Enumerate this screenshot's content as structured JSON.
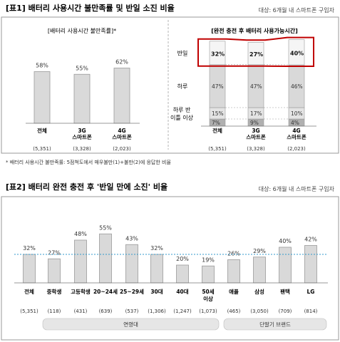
{
  "figure1": {
    "title": "[표1] 배터리 사용시간 불만족률 및 반일 소진 비율",
    "subtitle": "대상: 6개월 내 스마트폰 구입자",
    "footnote": "* 배터리 사용시간 불만족률: 5점척도에서 매우불만(1)+불만(2)에 응답한 비율",
    "left_panel": {
      "header": "[배터리 사용시간 불만족률]*",
      "chart_data": {
        "type": "bar",
        "categories": [
          "전체",
          "3G\n스마트폰",
          "4G\n스마트폰"
        ],
        "sample_sizes": [
          "(5,351)",
          "(3,328)",
          "(2,023)"
        ],
        "values": [
          58,
          55,
          62
        ],
        "value_labels": [
          "58%",
          "55%",
          "62%"
        ],
        "ylim": [
          0,
          100
        ]
      }
    },
    "right_panel": {
      "header": "[완전 충전 후 배터리 사용가능시간]",
      "chart_data": {
        "type": "bar",
        "stacked": true,
        "categories": [
          "전체",
          "3G\n스마트폰",
          "4G\n스마트폰"
        ],
        "sample_sizes": [
          "(5,351)",
          "(3,328)",
          "(2,023)"
        ],
        "series": [
          {
            "name": "하루 반\n이틀 이상",
            "values": [
              7,
              9,
              4
            ]
          },
          {
            "name": "하루 반",
            "values": [
              15,
              17,
              10
            ]
          },
          {
            "name": "하루",
            "values": [
              47,
              47,
              46
            ]
          },
          {
            "name": "반일",
            "values": [
              32,
              27,
              40
            ]
          }
        ],
        "value_labels": {
          "반일": [
            "32%",
            "27%",
            "40%"
          ],
          "하루": [
            "47%",
            "47%",
            "46%"
          ],
          "하루 반": [
            "15%",
            "17%",
            "10%"
          ],
          "이틀 이상": [
            "7%",
            "9%",
            "4%"
          ]
        },
        "row_labels": [
          "반일",
          "하루",
          "하루 반",
          "이틀 이상"
        ],
        "highlight": "반일",
        "ylim": [
          0,
          100
        ]
      }
    }
  },
  "figure2": {
    "title": "[표2] 배터리 완전 충전 후 '반일 만에 소진' 비율",
    "subtitle": "대상: 6개월 내 스마트폰 구입자",
    "chart_data": {
      "type": "bar",
      "categories": [
        "전체",
        "중학생",
        "고등학생",
        "20~24세",
        "25~29세",
        "30대",
        "40대",
        "50세\n이상",
        "애플",
        "삼성",
        "팬택",
        "LG"
      ],
      "sample_sizes": [
        "(5,351)",
        "(118)",
        "(431)",
        "(639)",
        "(537)",
        "(1,306)",
        "(1,247)",
        "(1,073)",
        "(465)",
        "(3,050)",
        "(709)",
        "(814)"
      ],
      "values": [
        32,
        27,
        48,
        55,
        43,
        32,
        20,
        19,
        26,
        29,
        40,
        42
      ],
      "value_labels": [
        "32%",
        "27%",
        "48%",
        "55%",
        "43%",
        "32%",
        "20%",
        "19%",
        "26%",
        "29%",
        "40%",
        "42%"
      ],
      "reference_line": 32,
      "groups": [
        {
          "label": "연령대",
          "from": 1,
          "to": 7
        },
        {
          "label": "단말기 브랜드",
          "from": 8,
          "to": 11
        }
      ],
      "ylim": [
        0,
        60
      ]
    }
  },
  "colors": {
    "bar_fill": "#d9d9d9",
    "bar_stroke": "#9a9a9a",
    "dark_segment": "#b0b0b0",
    "mid_segment": "#e4e4e4",
    "highlight_box": "#c00000",
    "reference_line": "#3399cc",
    "group_pill": "#e6e6e6"
  }
}
